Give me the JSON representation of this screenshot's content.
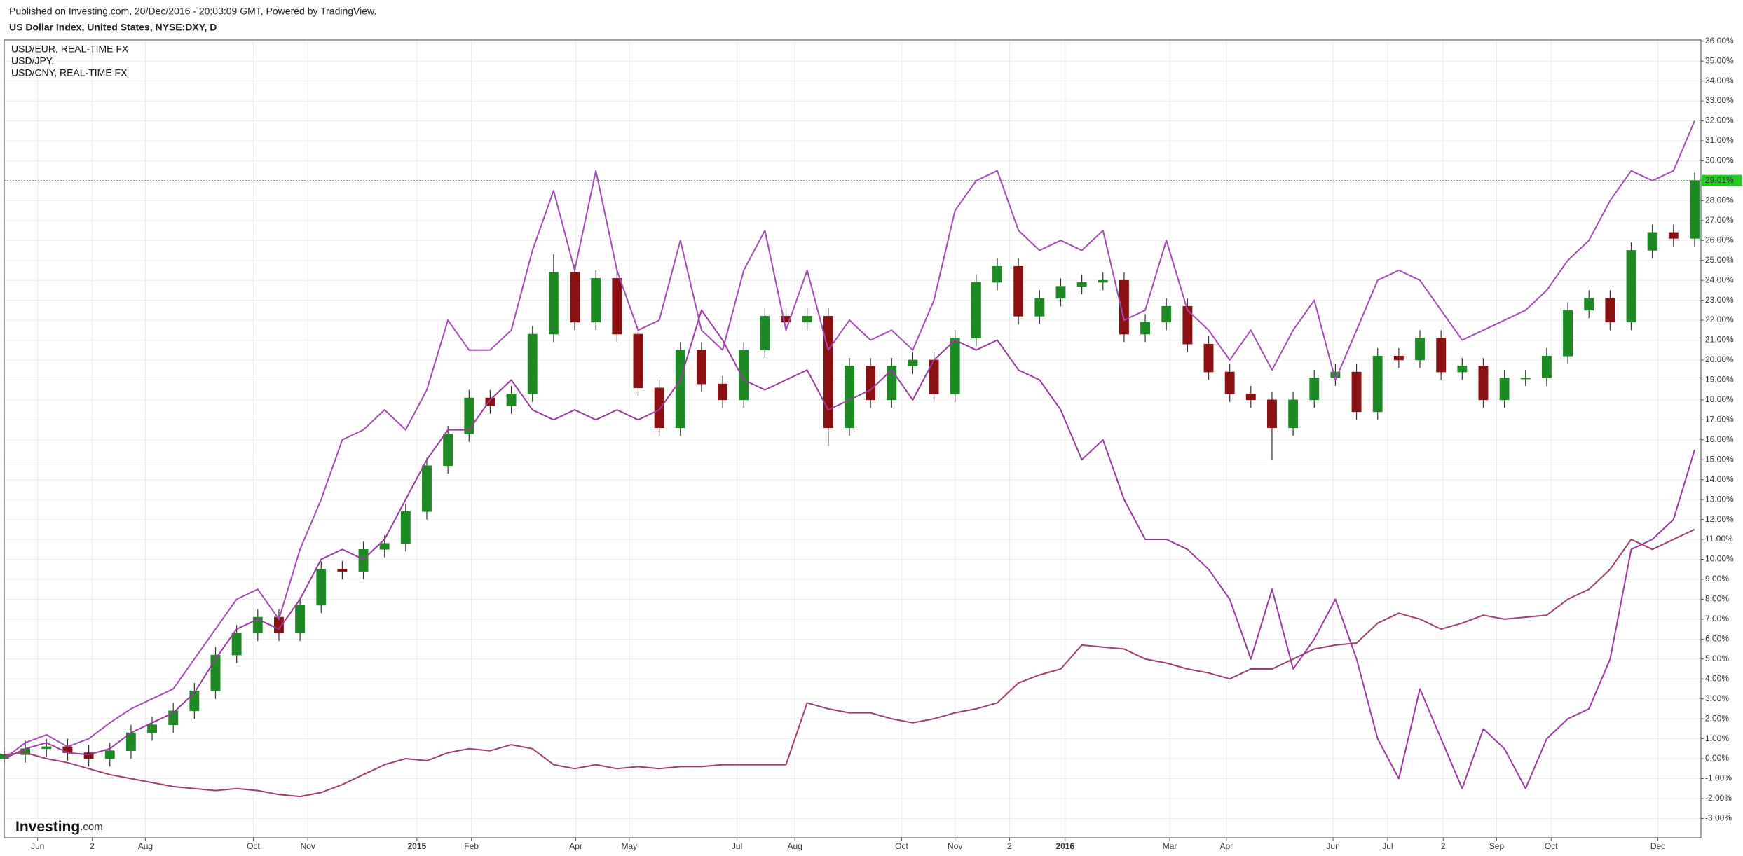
{
  "chart_data": {
    "type": "candlestick",
    "source": "Published on Investing.com, 20/Dec/2016 - 20:03:09 GMT, Powered by TradingView.",
    "title": "US Dollar Index, United States, NYSE:DXY, D",
    "watermark": "Investing",
    "watermark_suffix": ".com",
    "x": [
      0,
      1,
      2,
      3,
      4,
      5,
      6,
      7,
      8,
      9,
      10,
      11,
      12,
      13,
      14,
      15,
      16,
      17,
      18,
      19,
      20,
      21,
      22,
      23,
      24,
      25,
      26,
      27,
      28,
      29,
      30,
      31,
      32,
      33,
      34,
      35,
      36,
      37,
      38,
      39,
      40,
      41,
      42,
      43,
      44,
      45,
      46,
      47,
      48,
      49,
      50,
      51,
      52,
      53,
      54,
      55,
      56,
      57,
      58,
      59,
      60,
      61,
      62,
      63,
      64,
      65,
      66,
      67,
      68,
      69,
      70,
      71,
      72,
      73,
      74,
      75,
      76,
      77,
      78,
      79,
      80
    ],
    "xlim": [
      0,
      80.3
    ],
    "xticks": [
      {
        "value": 1.58,
        "label": "Jun"
      },
      {
        "value": 4.16,
        "label": "2"
      },
      {
        "value": 6.68,
        "label": "Aug"
      },
      {
        "value": 11.79,
        "label": "Oct"
      },
      {
        "value": 14.37,
        "label": "Nov"
      },
      {
        "value": 19.53,
        "label": "2015"
      },
      {
        "value": 22.11,
        "label": "Feb"
      },
      {
        "value": 27.05,
        "label": "Apr"
      },
      {
        "value": 29.58,
        "label": "May"
      },
      {
        "value": 34.68,
        "label": "Jul"
      },
      {
        "value": 37.42,
        "label": "Aug"
      },
      {
        "value": 42.47,
        "label": "Oct"
      },
      {
        "value": 45.0,
        "label": "Nov"
      },
      {
        "value": 47.58,
        "label": "2"
      },
      {
        "value": 50.21,
        "label": "2016"
      },
      {
        "value": 55.16,
        "label": "Mar"
      },
      {
        "value": 57.84,
        "label": "Apr"
      },
      {
        "value": 62.89,
        "label": "Jun"
      },
      {
        "value": 65.47,
        "label": "Jul"
      },
      {
        "value": 68.1,
        "label": "2"
      },
      {
        "value": 70.63,
        "label": "Sep"
      },
      {
        "value": 73.21,
        "label": "Oct"
      },
      {
        "value": 78.26,
        "label": "Dec"
      }
    ],
    "ylim": [
      -3.97,
      36.06
    ],
    "yticks": [
      {
        "value": -3,
        "label": "-3.00%"
      },
      {
        "value": -2,
        "label": "-2.00%"
      },
      {
        "value": -1,
        "label": "-1.00%"
      },
      {
        "value": 0,
        "label": "0.00%"
      },
      {
        "value": 1,
        "label": "1.00%"
      },
      {
        "value": 2,
        "label": "2.00%"
      },
      {
        "value": 3,
        "label": "3.00%"
      },
      {
        "value": 4,
        "label": "4.00%"
      },
      {
        "value": 5,
        "label": "5.00%"
      },
      {
        "value": 6,
        "label": "6.00%"
      },
      {
        "value": 7,
        "label": "7.00%"
      },
      {
        "value": 8,
        "label": "8.00%"
      },
      {
        "value": 9,
        "label": "9.00%"
      },
      {
        "value": 10,
        "label": "10.00%"
      },
      {
        "value": 11,
        "label": "11.00%"
      },
      {
        "value": 12,
        "label": "12.00%"
      },
      {
        "value": 13,
        "label": "13.00%"
      },
      {
        "value": 14,
        "label": "14.00%"
      },
      {
        "value": 15,
        "label": "15.00%"
      },
      {
        "value": 16,
        "label": "16.00%"
      },
      {
        "value": 17,
        "label": "17.00%"
      },
      {
        "value": 18,
        "label": "18.00%"
      },
      {
        "value": 19,
        "label": "19.00%"
      },
      {
        "value": 20,
        "label": "20.00%"
      },
      {
        "value": 21,
        "label": "21.00%"
      },
      {
        "value": 22,
        "label": "22.00%"
      },
      {
        "value": 23,
        "label": "23.00%"
      },
      {
        "value": 24,
        "label": "24.00%"
      },
      {
        "value": 25,
        "label": "25.00%"
      },
      {
        "value": 26,
        "label": "26.00%"
      },
      {
        "value": 27,
        "label": "27.00%"
      },
      {
        "value": 28,
        "label": "28.00%"
      },
      {
        "value": 29,
        "label": "29.00%"
      },
      {
        "value": 30,
        "label": "30.00%"
      },
      {
        "value": 31,
        "label": "31.00%"
      },
      {
        "value": 32,
        "label": "32.00%"
      },
      {
        "value": 33,
        "label": "33.00%"
      },
      {
        "value": 34,
        "label": "34.00%"
      },
      {
        "value": 35,
        "label": "35.00%"
      },
      {
        "value": 36,
        "label": "36.00%"
      }
    ],
    "grid": true,
    "up_color": "#1d8a24",
    "down_color": "#8b1010",
    "open": [
      0.0,
      0.2,
      0.5,
      0.6,
      0.3,
      0.0,
      0.4,
      1.3,
      1.7,
      2.4,
      3.4,
      5.2,
      6.3,
      7.1,
      6.3,
      7.7,
      9.5,
      9.4,
      10.5,
      10.8,
      12.4,
      14.7,
      16.3,
      18.1,
      17.7,
      18.3,
      21.3,
      24.4,
      21.9,
      24.1,
      21.3,
      18.6,
      16.6,
      20.5,
      18.8,
      18.0,
      20.5,
      22.2,
      21.9,
      22.2,
      16.6,
      19.7,
      18.0,
      19.7,
      20.0,
      18.3,
      21.1,
      23.9,
      24.7,
      22.2,
      23.1,
      23.7,
      23.9,
      24.0,
      21.3,
      21.9,
      22.7,
      20.8,
      19.4,
      18.3,
      18.0,
      16.6,
      18.0,
      19.1,
      19.4,
      17.4,
      20.2,
      20.0,
      21.1,
      19.4,
      19.7,
      18.0,
      19.1,
      19.1,
      20.2,
      22.5,
      23.1,
      21.9,
      25.5,
      26.4,
      26.1
    ],
    "high": [
      0.6,
      0.9,
      1.0,
      1.0,
      0.7,
      0.8,
      1.7,
      2.1,
      2.8,
      3.8,
      5.6,
      6.7,
      7.5,
      7.5,
      8.1,
      9.9,
      9.9,
      10.9,
      11.2,
      12.8,
      15.1,
      16.7,
      18.5,
      18.5,
      18.7,
      21.7,
      25.3,
      24.8,
      24.5,
      24.5,
      21.7,
      19.0,
      20.9,
      20.9,
      19.2,
      20.9,
      22.6,
      22.6,
      22.6,
      22.6,
      20.1,
      20.1,
      20.1,
      20.4,
      20.4,
      21.5,
      24.3,
      25.1,
      25.1,
      23.5,
      24.1,
      24.3,
      24.4,
      24.4,
      22.3,
      23.1,
      23.1,
      21.2,
      19.8,
      18.7,
      18.4,
      18.4,
      19.5,
      19.8,
      19.8,
      20.6,
      20.6,
      21.5,
      21.5,
      20.1,
      20.1,
      19.5,
      19.5,
      20.6,
      22.9,
      23.5,
      23.5,
      25.9,
      26.8,
      26.8,
      29.4
    ],
    "low": [
      -0.4,
      -0.2,
      0.1,
      -0.1,
      -0.4,
      -0.4,
      0.0,
      0.9,
      1.3,
      2.0,
      3.0,
      4.8,
      5.9,
      5.9,
      5.9,
      7.3,
      9.0,
      9.0,
      10.1,
      10.4,
      12.0,
      14.3,
      15.9,
      17.3,
      17.3,
      17.9,
      20.9,
      21.5,
      21.5,
      20.9,
      18.2,
      16.2,
      16.2,
      18.4,
      17.6,
      17.6,
      20.1,
      21.5,
      21.5,
      15.7,
      16.2,
      17.6,
      17.6,
      19.3,
      17.9,
      17.9,
      20.7,
      23.5,
      21.8,
      21.8,
      22.7,
      23.3,
      23.5,
      20.9,
      20.9,
      21.5,
      20.4,
      19.0,
      17.9,
      17.6,
      15.0,
      16.2,
      17.6,
      18.7,
      17.0,
      17.0,
      19.6,
      19.6,
      19.0,
      19.0,
      17.6,
      17.6,
      18.7,
      18.7,
      19.8,
      22.1,
      21.5,
      21.5,
      25.1,
      25.7,
      25.7
    ],
    "close": [
      0.2,
      0.5,
      0.6,
      0.3,
      0.0,
      0.4,
      1.3,
      1.7,
      2.4,
      3.4,
      5.2,
      6.3,
      7.1,
      6.3,
      7.7,
      9.5,
      9.4,
      10.5,
      10.8,
      12.4,
      14.7,
      16.3,
      18.1,
      17.7,
      18.3,
      21.3,
      24.4,
      21.9,
      24.1,
      21.3,
      18.6,
      16.6,
      20.5,
      18.8,
      18.0,
      20.5,
      22.2,
      21.9,
      22.2,
      16.6,
      19.7,
      18.0,
      19.7,
      20.0,
      18.3,
      21.1,
      23.9,
      24.7,
      22.2,
      23.1,
      23.7,
      23.9,
      24.0,
      21.3,
      21.9,
      22.7,
      20.8,
      19.4,
      18.3,
      18.0,
      16.6,
      18.0,
      19.1,
      19.4,
      17.4,
      20.2,
      20.0,
      21.1,
      19.4,
      19.7,
      18.0,
      19.1,
      19.1,
      20.2,
      22.5,
      23.1,
      21.9,
      25.5,
      26.4,
      26.1,
      29.01
    ],
    "price_line": {
      "value": 29.01,
      "label": "29.01%",
      "color": "#22cc22"
    },
    "series": [
      {
        "name": "USD/EUR, REAL-TIME FX",
        "color": "#a34cb5",
        "values": [
          0.0,
          0.8,
          1.2,
          0.6,
          1.0,
          1.8,
          2.5,
          3.0,
          3.5,
          5.0,
          6.5,
          8.0,
          8.5,
          7.0,
          10.5,
          13.0,
          16.0,
          16.5,
          17.5,
          16.5,
          18.5,
          22.0,
          20.5,
          20.5,
          21.5,
          25.5,
          28.5,
          24.5,
          29.5,
          24.5,
          21.5,
          22.0,
          26.0,
          21.5,
          20.5,
          24.5,
          26.5,
          21.5,
          24.5,
          20.5,
          22.0,
          21.0,
          21.5,
          20.5,
          23.0,
          27.5,
          29.0,
          29.5,
          26.5,
          25.5,
          26.0,
          25.5,
          26.5,
          22.0,
          22.5,
          26.0,
          22.5,
          21.5,
          20.0,
          21.5,
          19.5,
          21.5,
          23.0,
          19.0,
          21.5,
          24.0,
          24.5,
          24.0,
          22.5,
          21.0,
          21.5,
          22.0,
          22.5,
          23.5,
          25.0,
          26.0,
          28.0,
          29.5,
          29.0,
          29.5,
          32.0
        ]
      },
      {
        "name": "USD/JPY,",
        "color": "#9a3a9e",
        "values": [
          0.0,
          0.5,
          0.8,
          0.3,
          0.2,
          0.5,
          1.3,
          1.8,
          2.3,
          3.3,
          5.0,
          6.5,
          7.0,
          6.5,
          8.0,
          10.0,
          10.5,
          10.0,
          11.0,
          13.0,
          15.0,
          16.5,
          16.5,
          18.0,
          19.0,
          17.5,
          17.0,
          17.5,
          17.0,
          17.5,
          17.0,
          17.5,
          19.0,
          22.5,
          21.0,
          19.0,
          18.5,
          19.0,
          19.5,
          17.5,
          18.0,
          18.5,
          19.5,
          18.0,
          20.0,
          21.0,
          20.5,
          21.0,
          19.5,
          19.0,
          17.5,
          15.0,
          16.0,
          13.0,
          11.0,
          11.0,
          10.5,
          9.5,
          8.0,
          5.0,
          8.5,
          4.5,
          6.0,
          8.0,
          5.0,
          1.0,
          -1.0,
          3.5,
          1.0,
          -1.5,
          1.5,
          0.5,
          -1.5,
          1.0,
          2.0,
          2.5,
          5.0,
          10.5,
          11.0,
          12.0,
          15.5
        ]
      },
      {
        "name": "USD/CNY, REAL-TIME FX",
        "color": "#a03c74",
        "values": [
          0.2,
          0.3,
          0.0,
          -0.2,
          -0.5,
          -0.8,
          -1.0,
          -1.2,
          -1.4,
          -1.5,
          -1.6,
          -1.5,
          -1.6,
          -1.8,
          -1.9,
          -1.7,
          -1.3,
          -0.8,
          -0.3,
          0.0,
          -0.1,
          0.3,
          0.5,
          0.4,
          0.7,
          0.5,
          -0.3,
          -0.5,
          -0.3,
          -0.5,
          -0.4,
          -0.5,
          -0.4,
          -0.4,
          -0.3,
          -0.3,
          -0.3,
          -0.3,
          2.8,
          2.5,
          2.3,
          2.3,
          2.0,
          1.8,
          2.0,
          2.3,
          2.5,
          2.8,
          3.8,
          4.2,
          4.5,
          5.7,
          5.6,
          5.5,
          5.0,
          4.8,
          4.5,
          4.3,
          4.0,
          4.5,
          4.5,
          5.0,
          5.5,
          5.7,
          5.8,
          6.8,
          7.3,
          7.0,
          6.5,
          6.8,
          7.2,
          7.0,
          7.1,
          7.2,
          8.0,
          8.5,
          9.5,
          11.0,
          10.5,
          11.0,
          11.5
        ]
      }
    ]
  }
}
